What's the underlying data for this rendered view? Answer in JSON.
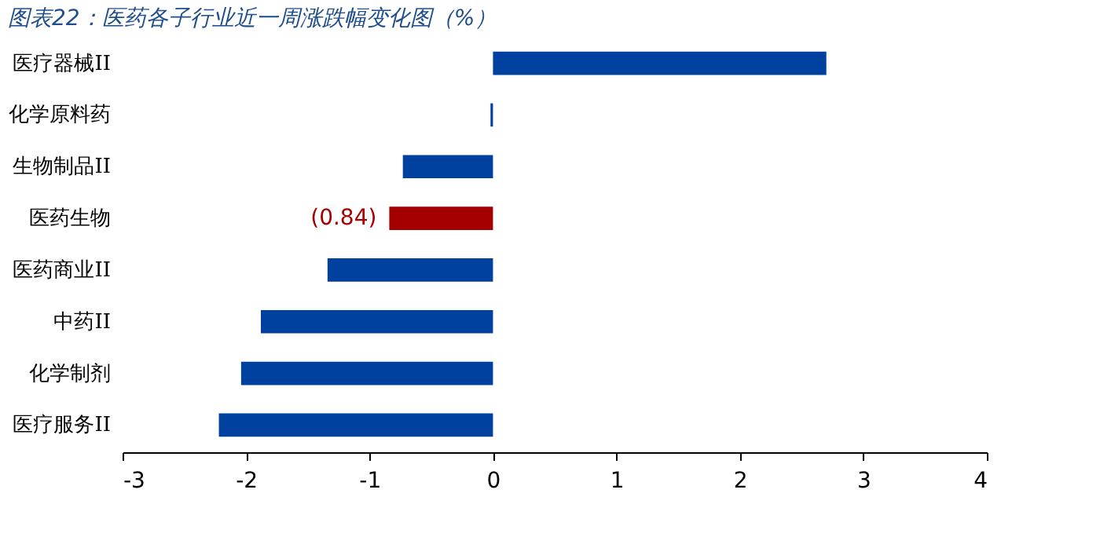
{
  "chart_data": {
    "type": "bar",
    "orientation": "horizontal",
    "title": "图表22：医药各子行业近一周涨跌幅变化图（%）",
    "categories": [
      "医疗器械II",
      "化学原料药",
      "生物制品II",
      "医药生物",
      "医药商业II",
      "中药II",
      "化学制剂",
      "医疗服务II"
    ],
    "values": [
      2.7,
      -0.02,
      -0.73,
      -0.84,
      -1.34,
      -1.88,
      -2.04,
      -2.22
    ],
    "colors": [
      "#0041a0",
      "#0041a0",
      "#0041a0",
      "#a50000",
      "#0041a0",
      "#0041a0",
      "#0041a0",
      "#0041a0"
    ],
    "value_labels": [
      null,
      null,
      null,
      "(0.84)",
      null,
      null,
      null,
      null
    ],
    "xlim": [
      -3,
      4
    ],
    "xticks": [
      -3,
      -2,
      -1,
      0,
      1,
      2,
      3,
      4
    ],
    "grid": false
  }
}
